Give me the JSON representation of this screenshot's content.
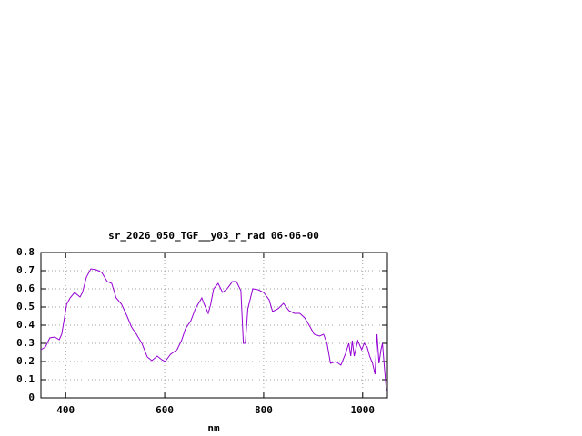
{
  "chart_data": {
    "type": "line",
    "title": "sr_2026_050_TGF__y03_r_rad 06-06-00",
    "x_label": "nm",
    "x": [
      350,
      359,
      368,
      378,
      387,
      392,
      396,
      402,
      409,
      418,
      429,
      434,
      442,
      451,
      462,
      473,
      484,
      493,
      502,
      513,
      524,
      533,
      543,
      554,
      565,
      574,
      585,
      594,
      601,
      612,
      625,
      634,
      642,
      653,
      662,
      675,
      680,
      688,
      693,
      699,
      708,
      717,
      726,
      737,
      745,
      754,
      759,
      763,
      768,
      778,
      789,
      800,
      811,
      818,
      829,
      840,
      851,
      862,
      873,
      883,
      894,
      902,
      913,
      921,
      928,
      935,
      946,
      956,
      965,
      972,
      976,
      979,
      983,
      990,
      998,
      1003,
      1009,
      1014,
      1020,
      1025,
      1029,
      1033,
      1037,
      1040,
      1044,
      1048
    ],
    "series": [
      {
        "color": "#9400d3",
        "values": [
          0.265,
          0.28,
          0.33,
          0.335,
          0.32,
          0.35,
          0.415,
          0.515,
          0.55,
          0.58,
          0.555,
          0.58,
          0.665,
          0.71,
          0.705,
          0.69,
          0.64,
          0.63,
          0.55,
          0.515,
          0.45,
          0.39,
          0.35,
          0.3,
          0.225,
          0.205,
          0.23,
          0.21,
          0.2,
          0.24,
          0.265,
          0.315,
          0.38,
          0.425,
          0.49,
          0.55,
          0.515,
          0.465,
          0.515,
          0.6,
          0.63,
          0.58,
          0.6,
          0.64,
          0.64,
          0.59,
          0.3,
          0.3,
          0.49,
          0.6,
          0.595,
          0.58,
          0.54,
          0.475,
          0.49,
          0.52,
          0.48,
          0.465,
          0.465,
          0.44,
          0.39,
          0.35,
          0.34,
          0.35,
          0.3,
          0.19,
          0.2,
          0.18,
          0.24,
          0.3,
          0.23,
          0.315,
          0.23,
          0.315,
          0.265,
          0.3,
          0.28,
          0.23,
          0.19,
          0.13,
          0.35,
          0.19,
          0.265,
          0.3,
          0.165,
          0.04
        ]
      }
    ],
    "xlim": [
      350,
      1050
    ],
    "xticks": [
      400,
      600,
      800,
      1000
    ],
    "ylim": [
      0,
      0.8
    ],
    "yticks": [
      0,
      0.1,
      0.2,
      0.3,
      0.4,
      0.5,
      0.6,
      0.7,
      0.8
    ],
    "grid": true
  }
}
